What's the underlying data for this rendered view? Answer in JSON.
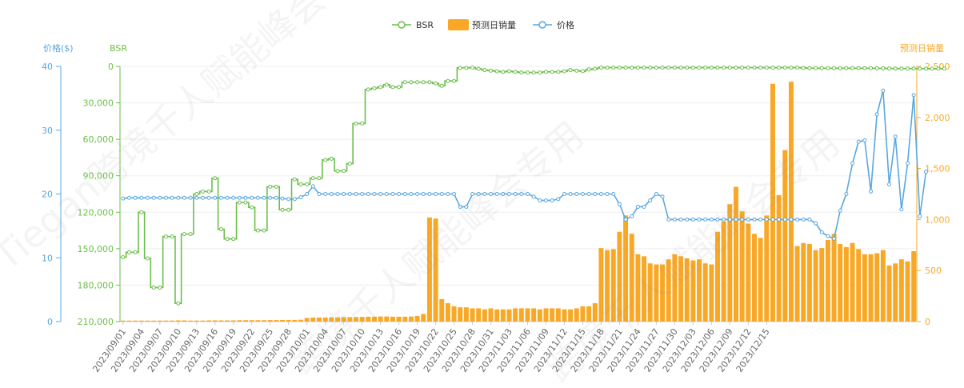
{
  "watermarks": [
    "Tiegan跨境千人赋能峰会专用&SH",
    "跨境千人赋能峰会专用",
    "跨境千人赋能峰会专用"
  ],
  "chart_data": {
    "type": "bar+line",
    "legend": {
      "items": [
        {
          "name": "BSR",
          "kind": "line",
          "color": "#6cbf4b"
        },
        {
          "name": "预测日销量",
          "kind": "bar",
          "color": "#f9a825"
        },
        {
          "name": "价格",
          "kind": "line",
          "color": "#5aa7e0"
        }
      ],
      "placement": "top-center"
    },
    "axes": {
      "price": {
        "title": "价格($)",
        "min": 0,
        "max": 40,
        "ticks": [
          0,
          10,
          20,
          30,
          40
        ],
        "tick_labels": [
          "0",
          "10",
          "20",
          "30",
          "40"
        ],
        "color": "#5aa7e0",
        "side": "left-outer"
      },
      "bsr": {
        "title": "BSR",
        "min": 0,
        "max": 210000,
        "inverse": true,
        "ticks": [
          0,
          30000,
          60000,
          90000,
          120000,
          150000,
          180000,
          210000
        ],
        "tick_labels": [
          "0",
          "30,000",
          "60,000",
          "90,000",
          "120,000",
          "150,000",
          "180,000",
          "210,000"
        ],
        "color": "#6cbf4b",
        "side": "left-inner"
      },
      "sales": {
        "title": "预测日销量",
        "min": 0,
        "max": 2500,
        "ticks": [
          0,
          500,
          1000,
          1500,
          2000,
          2500
        ],
        "tick_labels": [
          "0",
          "500",
          "1,000",
          "1,500",
          "2,000",
          "2,500"
        ],
        "color": "#f9a825",
        "side": "right"
      },
      "x": {
        "start": "2023-09-01",
        "end": "2023-12-16",
        "label_every": 3,
        "tick_labels": [
          "2023/09/01",
          "2023/09/04",
          "2023/09/07",
          "2023/09/10",
          "2023/09/13",
          "2023/09/16",
          "2023/09/19",
          "2023/09/22",
          "2023/09/25",
          "2023/09/28",
          "2023/10/01",
          "2023/10/04",
          "2023/10/07",
          "2023/10/10",
          "2023/10/13",
          "2023/10/16",
          "2023/10/19",
          "2023/10/22",
          "2023/10/25",
          "2023/10/28",
          "2023/10/31",
          "2023/11/03",
          "2023/11/06",
          "2023/11/09",
          "2023/11/12",
          "2023/11/15",
          "2023/11/18",
          "2023/11/21",
          "2023/11/24",
          "2023/11/27",
          "2023/11/30",
          "2023/12/03",
          "2023/12/06",
          "2023/12/09",
          "2023/12/12",
          "2023/12/15"
        ]
      }
    },
    "grid": true,
    "series": [
      {
        "name": "预测日销量",
        "type": "bar",
        "axis": "sales",
        "values": [
          10,
          10,
          10,
          10,
          10,
          10,
          10,
          10,
          10,
          12,
          12,
          10,
          10,
          10,
          12,
          12,
          12,
          12,
          12,
          14,
          14,
          14,
          14,
          14,
          15,
          15,
          16,
          16,
          16,
          18,
          35,
          40,
          40,
          40,
          42,
          42,
          44,
          44,
          45,
          46,
          48,
          48,
          50,
          50,
          48,
          48,
          48,
          50,
          55,
          75,
          1020,
          1010,
          220,
          180,
          150,
          140,
          140,
          130,
          130,
          120,
          130,
          120,
          120,
          120,
          130,
          130,
          130,
          130,
          120,
          130,
          130,
          130,
          120,
          120,
          130,
          150,
          150,
          180,
          720,
          700,
          710,
          880,
          1040,
          860,
          660,
          640,
          570,
          560,
          560,
          610,
          660,
          640,
          620,
          600,
          610,
          570,
          560,
          880,
          980,
          1150,
          1320,
          1080,
          960,
          860,
          820,
          1040,
          2330,
          1240,
          1680,
          2350,
          740,
          770,
          760,
          700,
          720,
          800,
          860,
          760,
          730,
          770,
          710,
          660,
          660,
          670,
          700,
          550,
          570,
          610,
          590,
          690
        ]
      },
      {
        "name": "BSR",
        "type": "line",
        "axis": "bsr",
        "step": true,
        "values": [
          157000,
          153000,
          153000,
          120000,
          158000,
          182000,
          182000,
          140000,
          140000,
          195000,
          138000,
          138000,
          105000,
          103000,
          103000,
          92000,
          134000,
          142000,
          142000,
          112000,
          112000,
          116000,
          135000,
          135000,
          99000,
          99000,
          118000,
          118000,
          93000,
          97000,
          97000,
          92000,
          92000,
          77000,
          76000,
          86000,
          86000,
          80000,
          47000,
          47000,
          19000,
          18000,
          17000,
          15000,
          17000,
          17000,
          13000,
          13000,
          13000,
          13000,
          13000,
          14000,
          16000,
          12000,
          12000,
          1200,
          1200,
          1000,
          2000,
          3000,
          3500,
          4000,
          4500,
          4000,
          4500,
          5000,
          5000,
          5000,
          5000,
          4500,
          4500,
          4500,
          4000,
          3000,
          3500,
          4000,
          2500,
          2000,
          1000,
          1000,
          1000,
          1000,
          1000,
          1000,
          1000,
          1000,
          1000,
          1000,
          1000,
          1000,
          1000,
          1000,
          1000,
          1000,
          1000,
          1000,
          1000,
          1000,
          1000,
          1000,
          1000,
          1000,
          1000,
          1000,
          1000,
          1000,
          1000,
          1000,
          1000,
          1000,
          1000,
          1200,
          1500,
          1500,
          1500,
          1500,
          1500,
          1600,
          1500,
          1500,
          1500,
          1500,
          1500,
          1600,
          1600,
          1700,
          1800,
          1800,
          1800,
          1800,
          1800,
          1800,
          1800,
          1800,
          1800
        ]
      },
      {
        "name": "价格",
        "type": "line",
        "axis": "price",
        "values": [
          19.3,
          19.4,
          19.4,
          19.4,
          19.4,
          19.4,
          19.4,
          19.4,
          19.4,
          19.4,
          19.4,
          19.4,
          19.4,
          19.4,
          19.4,
          19.4,
          19.4,
          19.4,
          19.4,
          19.4,
          19.4,
          19.4,
          19.4,
          19.4,
          19.4,
          19.4,
          19.3,
          19.2,
          19.2,
          19.5,
          20.0,
          21.2,
          20.0,
          20.0,
          20.0,
          20.0,
          20.0,
          20.0,
          20.0,
          20.0,
          20.0,
          20.0,
          20.0,
          20.0,
          20.0,
          20.0,
          20.0,
          20.0,
          20.0,
          20.0,
          20.0,
          20.0,
          20.0,
          20.0,
          20.0,
          18.0,
          18.0,
          20.0,
          20.0,
          20.0,
          20.0,
          20.0,
          20.0,
          20.0,
          20.0,
          20.0,
          20.0,
          19.6,
          19.0,
          19.0,
          19.0,
          19.2,
          20.0,
          20.0,
          20.0,
          20.0,
          20.0,
          20.0,
          20.0,
          20.0,
          20.0,
          18.4,
          16.0,
          16.5,
          18.0,
          18.0,
          19.0,
          20.0,
          19.6,
          16.0,
          16.0,
          16.0,
          16.0,
          16.0,
          16.0,
          16.0,
          16.0,
          16.0,
          16.0,
          16.0,
          16.0,
          16.0,
          16.0,
          16.0,
          16.0,
          16.0,
          16.0,
          16.0,
          16.0,
          16.0,
          16.0,
          16.0,
          16.0,
          15.4,
          14.0,
          13.4,
          13.0,
          17.4,
          20.0,
          24.8,
          28.2,
          28.4,
          20.4,
          32.5,
          36.2,
          21.5,
          29.0,
          17.6,
          24.8,
          35.5,
          16.5,
          23.5
        ]
      }
    ]
  }
}
